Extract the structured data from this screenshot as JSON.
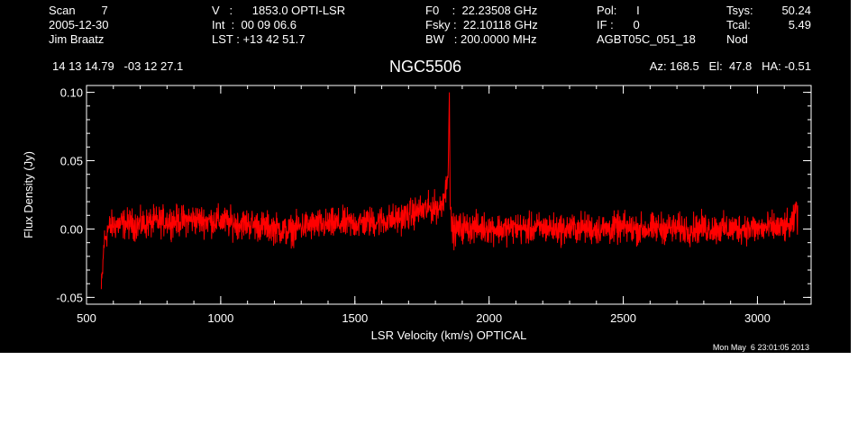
{
  "header": {
    "col1": [
      "Scan        7",
      "2005-12-30",
      "Jim Braatz"
    ],
    "col2": [
      "V   :      1853.0 OPTI-LSR",
      "Int  :  00 09 06.6",
      "LST : +13 42 51.7"
    ],
    "col3": [
      "F0    :  22.23508 GHz",
      "Fsky :  22.10118 GHz",
      "BW   : 200.0000 MHz"
    ],
    "col4": [
      "Pol:      I",
      "IF :      0",
      "AGBT05C_051_18"
    ],
    "col5": [
      "Tsys:",
      "Tcal:",
      "Nod"
    ],
    "col6": [
      "50.24",
      "5.49"
    ],
    "coords": "14 13 14.79   -03 12 27.1",
    "object": "NGC5506",
    "az_el_ha": "Az: 168.5   El:  47.8   HA: -0.51"
  },
  "timestamp": "Mon May  6 23:01:05 2013",
  "colors": {
    "background": "#000000",
    "foreground": "#ffffff",
    "trace": "#ff0000"
  },
  "chart_data": {
    "type": "line",
    "xlabel": "LSR Velocity (km/s) OPTICAL",
    "ylabel": "Flux Density (Jy)",
    "xlim": [
      500,
      3200
    ],
    "ylim": [
      -0.055,
      0.105
    ],
    "x_ticks": [
      500,
      1000,
      1500,
      2000,
      2500,
      3000
    ],
    "x_tick_labels": [
      "500",
      "1000",
      "1500",
      "2000",
      "2500",
      "3000"
    ],
    "y_ticks": [
      -0.05,
      0.0,
      0.05,
      0.1
    ],
    "y_tick_labels": [
      "-0.05",
      "0.00",
      "0.05",
      "0.10"
    ],
    "grid": false,
    "series": [
      {
        "color": "#ff0000",
        "x": [
          555,
          560,
          565,
          580,
          600,
          650,
          700,
          750,
          800,
          850,
          900,
          950,
          1000,
          1050,
          1100,
          1150,
          1200,
          1250,
          1300,
          1350,
          1400,
          1450,
          1500,
          1550,
          1600,
          1650,
          1700,
          1720,
          1740,
          1760,
          1780,
          1800,
          1820,
          1840,
          1848,
          1852,
          1855,
          1858,
          1862,
          1866,
          1870,
          1880,
          1900,
          1950,
          2000,
          2050,
          2100,
          2150,
          2200,
          2250,
          2300,
          2350,
          2400,
          2450,
          2500,
          2550,
          2600,
          2650,
          2700,
          2750,
          2800,
          2850,
          2900,
          2950,
          3000,
          3050,
          3100,
          3130,
          3140,
          3145,
          3150
        ],
        "y": [
          -0.045,
          -0.03,
          -0.01,
          0.0,
          0.003,
          0.004,
          0.003,
          0.005,
          0.006,
          0.006,
          0.007,
          0.006,
          0.006,
          0.004,
          0.004,
          0.002,
          0.001,
          -0.002,
          0.002,
          0.003,
          0.003,
          0.004,
          0.004,
          0.005,
          0.006,
          0.007,
          0.01,
          0.012,
          0.013,
          0.014,
          0.015,
          0.016,
          0.016,
          0.03,
          0.05,
          0.1,
          0.02,
          0.005,
          0.001,
          0.0,
          -0.002,
          0.0,
          0.001,
          0.001,
          0.001,
          0.0,
          0.001,
          0.0,
          0.001,
          0.0,
          0.0,
          0.001,
          0.0,
          0.0,
          0.001,
          0.0,
          0.0,
          0.001,
          0.0,
          0.0,
          0.001,
          0.0,
          0.0,
          0.001,
          0.0,
          0.001,
          0.001,
          0.002,
          0.01,
          0.02,
          0.005
        ]
      }
    ]
  }
}
